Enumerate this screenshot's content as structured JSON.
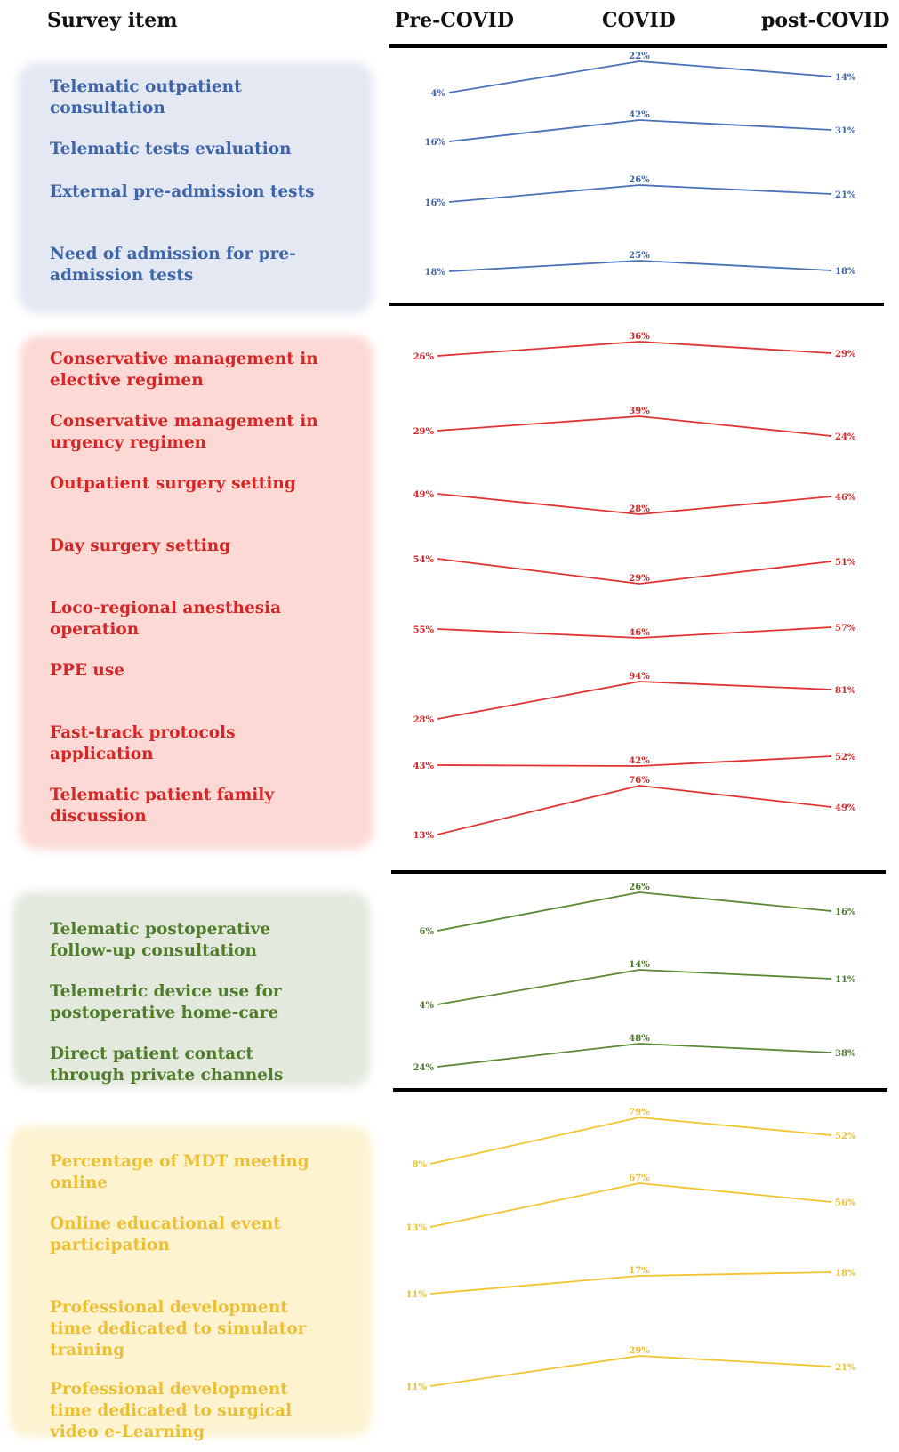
{
  "header": {
    "survey_item": "Survey item",
    "periods": [
      "Pre-COVID",
      "COVID",
      "post-COVID"
    ]
  },
  "colors": {
    "blue": "#4a72b8",
    "red": "#e03434",
    "green": "#5a8a35",
    "yellow": "#f2c431"
  },
  "chart_data": {
    "type": "line",
    "x": [
      "Pre-COVID",
      "COVID",
      "post-COVID"
    ],
    "unit": "%",
    "groups": [
      {
        "color": "blue",
        "series": [
          {
            "name": "Telematic outpatient consultation",
            "values": [
              4,
              22,
              14
            ]
          },
          {
            "name": "Telematic tests evaluation",
            "values": [
              16,
              42,
              31
            ]
          },
          {
            "name": "External pre-admission tests",
            "values": [
              16,
              26,
              21
            ]
          },
          {
            "name": "Need of admission for pre-admission tests",
            "values": [
              18,
              25,
              18
            ]
          }
        ]
      },
      {
        "color": "red",
        "series": [
          {
            "name": "Conservative management in elective regimen",
            "values": [
              26,
              36,
              29
            ]
          },
          {
            "name": "Conservative management in urgency regimen",
            "values": [
              29,
              39,
              24
            ]
          },
          {
            "name": "Outpatient surgery setting",
            "values": [
              49,
              28,
              46
            ]
          },
          {
            "name": "Day surgery setting",
            "values": [
              54,
              29,
              51
            ]
          },
          {
            "name": "Loco-regional anesthesia operation",
            "values": [
              55,
              46,
              57
            ]
          },
          {
            "name": "PPE use",
            "values": [
              28,
              94,
              81
            ]
          },
          {
            "name": "Fast-track protocols application",
            "values": [
              43,
              42,
              52
            ]
          },
          {
            "name": "Telematic patient family discussion",
            "values": [
              13,
              76,
              49
            ]
          }
        ]
      },
      {
        "color": "green",
        "series": [
          {
            "name": "Telematic postoperative follow-up consultation",
            "values": [
              6,
              26,
              16
            ]
          },
          {
            "name": "Telemetric device use for postoperative home-care",
            "values": [
              4,
              14,
              11
            ]
          },
          {
            "name": "Direct patient contact through private channels",
            "values": [
              24,
              48,
              38
            ]
          }
        ]
      },
      {
        "color": "yellow",
        "series": [
          {
            "name": "Percentage of MDT meeting online",
            "values": [
              8,
              79,
              52
            ]
          },
          {
            "name": "Online educational event participation",
            "values": [
              13,
              67,
              56
            ]
          },
          {
            "name": "Professional development time dedicated to simulator training",
            "values": [
              11,
              17,
              18
            ]
          },
          {
            "name": "Professional development time dedicated to surgical video e-Learning",
            "values": [
              11,
              29,
              21
            ]
          }
        ]
      }
    ]
  }
}
